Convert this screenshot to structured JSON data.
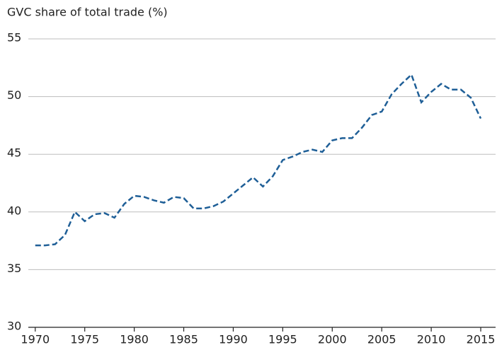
{
  "chart_data": {
    "type": "line",
    "title": "GVC share of total trade (%)",
    "x": [
      1970,
      1971,
      1972,
      1973,
      1974,
      1975,
      1976,
      1977,
      1978,
      1979,
      1980,
      1981,
      1982,
      1983,
      1984,
      1985,
      1986,
      1987,
      1988,
      1989,
      1990,
      1991,
      1992,
      1993,
      1994,
      1995,
      1996,
      1997,
      1998,
      1999,
      2000,
      2001,
      2002,
      2003,
      2004,
      2005,
      2006,
      2007,
      2008,
      2009,
      2010,
      2011,
      2012,
      2013,
      2014,
      2015
    ],
    "series": [
      {
        "color": "#1f5f97",
        "values": [
          37.1,
          37.1,
          37.2,
          38.0,
          40.0,
          39.2,
          39.8,
          39.9,
          39.5,
          40.7,
          41.4,
          41.3,
          41.0,
          40.8,
          41.3,
          41.2,
          40.3,
          40.3,
          40.5,
          40.9,
          41.6,
          42.3,
          43.0,
          42.2,
          43.1,
          44.5,
          44.8,
          45.2,
          45.4,
          45.2,
          46.2,
          46.4,
          46.4,
          47.3,
          48.4,
          48.7,
          50.2,
          51.1,
          51.9,
          49.5,
          50.4,
          51.1,
          50.6,
          50.6,
          49.9,
          48.1
        ]
      }
    ],
    "xlim": [
      1969.3,
      2016.5
    ],
    "xticks": [
      1970,
      1975,
      1980,
      1985,
      1990,
      1995,
      2000,
      2005,
      2010,
      2015
    ],
    "ylim": [
      30,
      55
    ],
    "yticks": [
      30,
      35,
      40,
      45,
      50,
      55
    ],
    "grid": true
  }
}
